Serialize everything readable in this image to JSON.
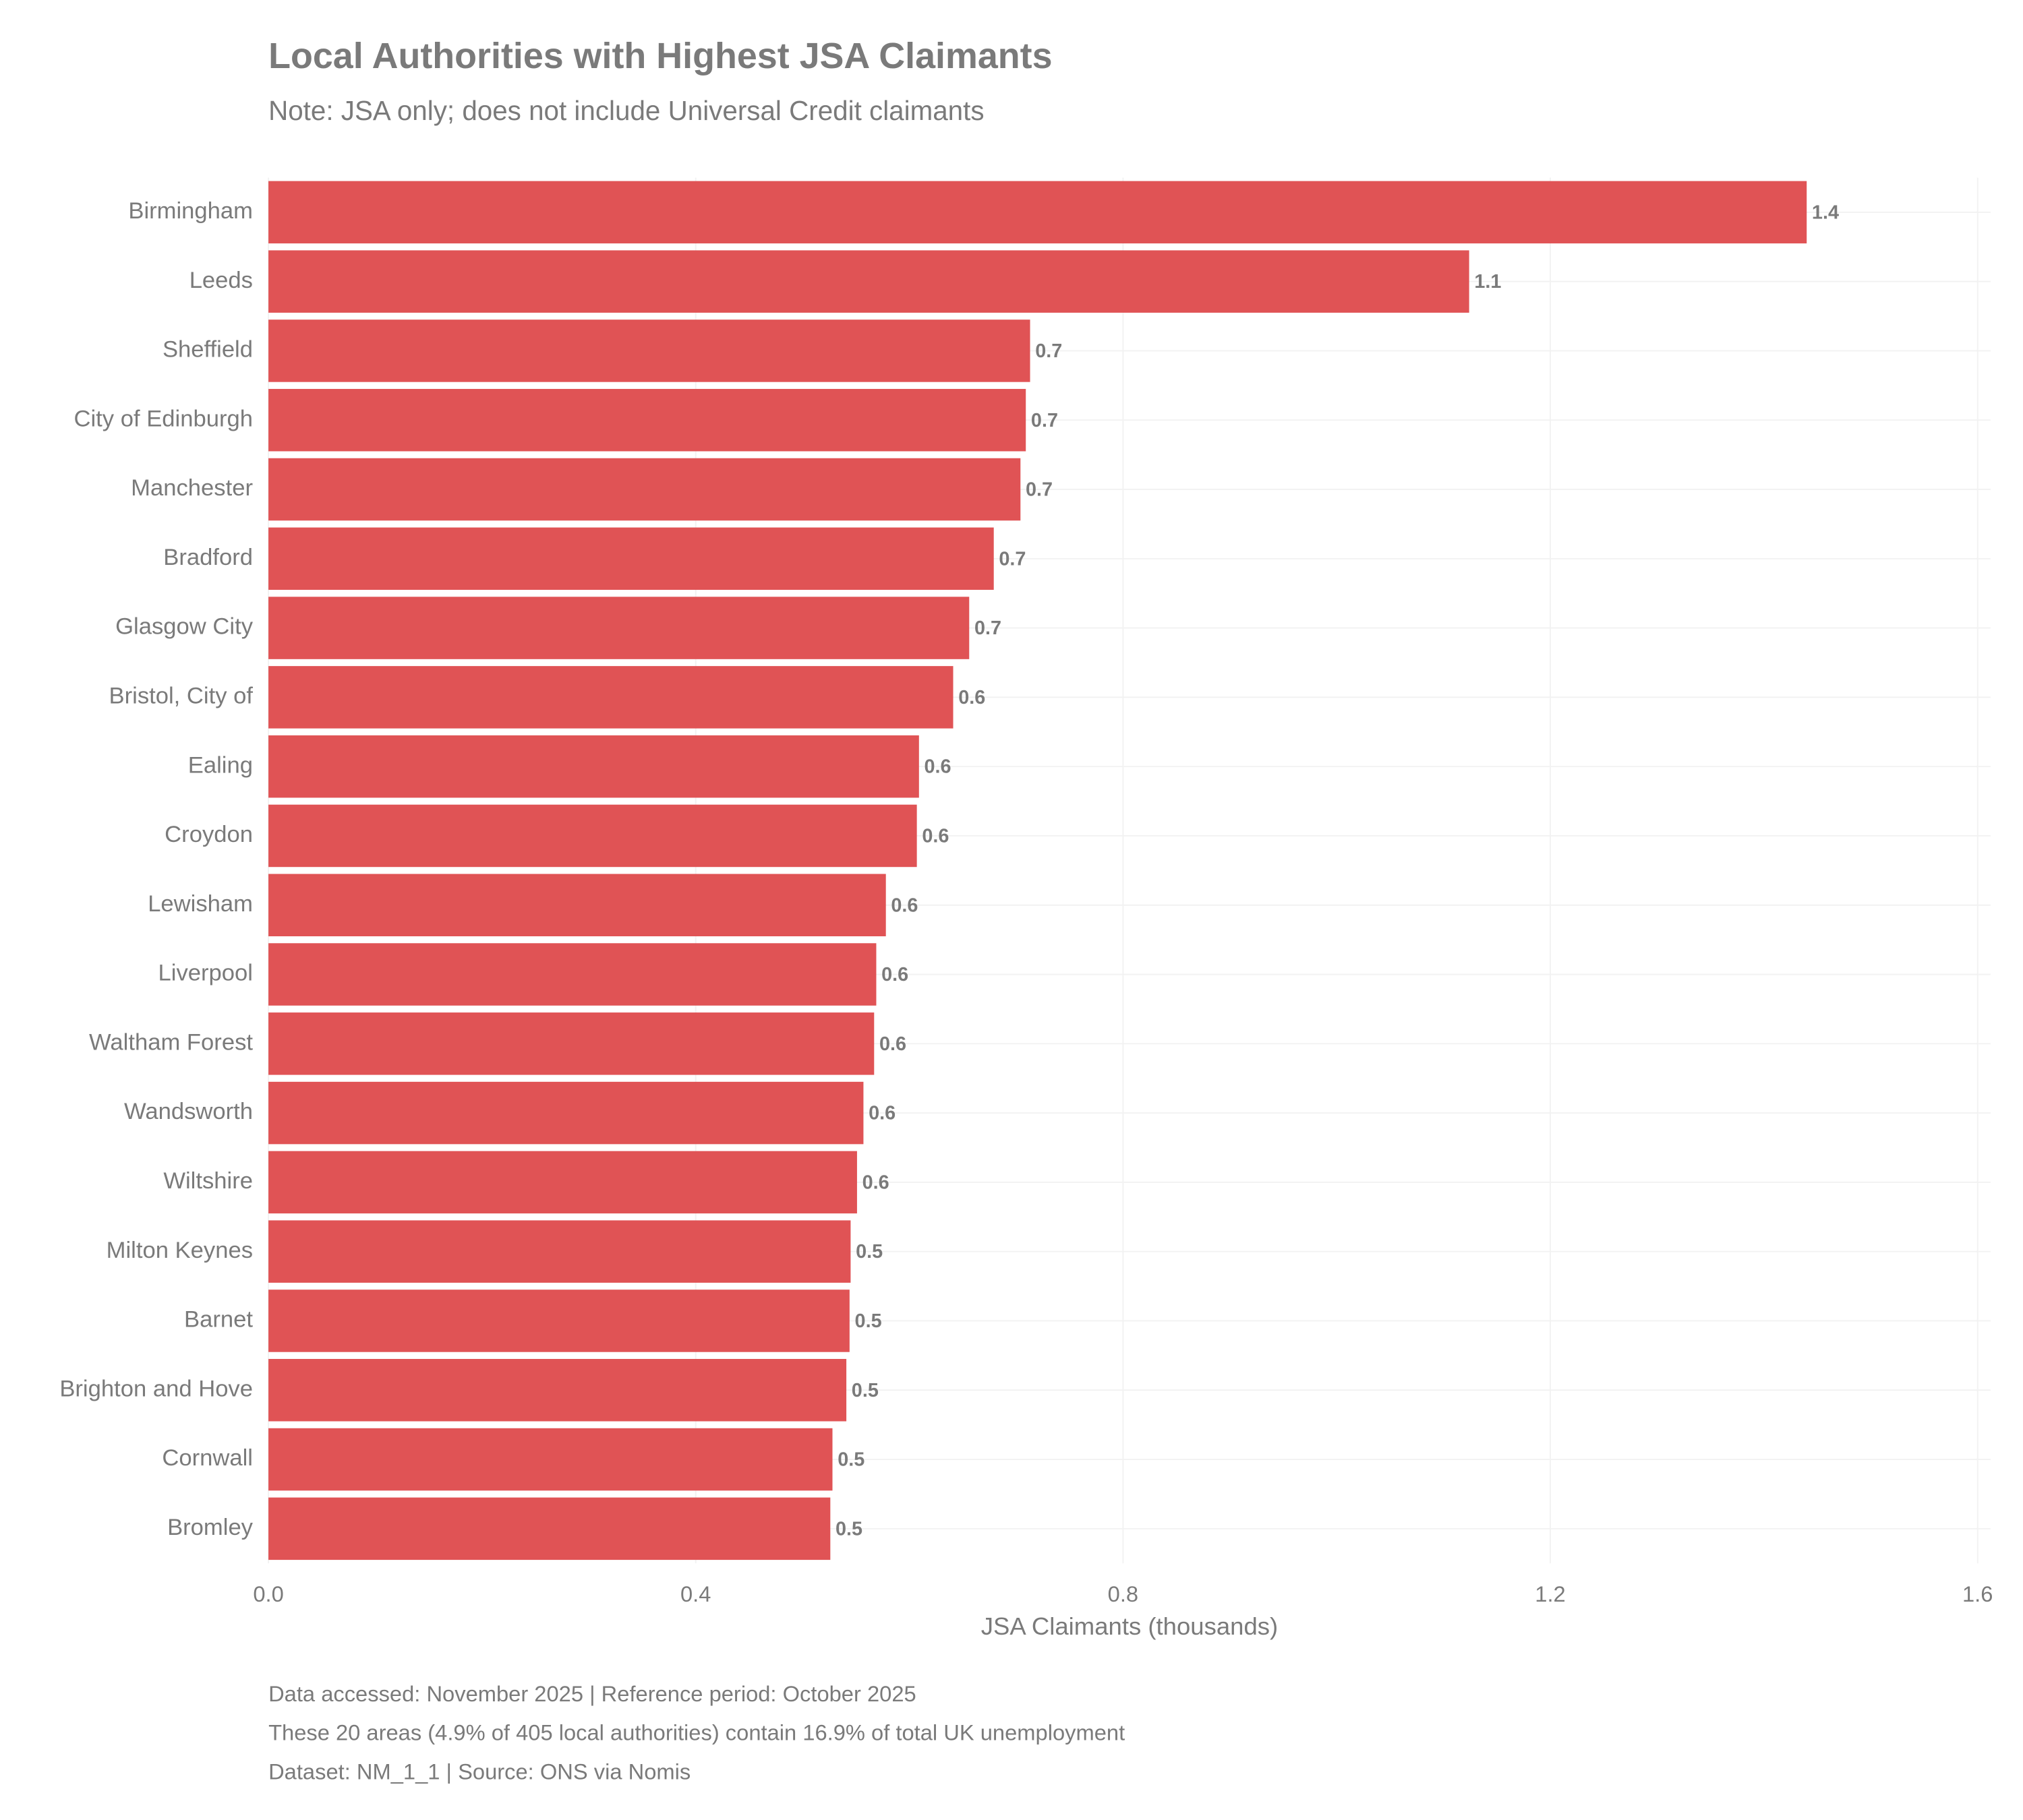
{
  "chart_data": {
    "type": "barh",
    "title": "Local Authorities with Highest JSA Claimants",
    "subtitle": "Note: JSA only; does not include Universal Credit claimants",
    "x_label": "JSA Claimants (thousands)",
    "categories": [
      "Birmingham",
      "Leeds",
      "Sheffield",
      "City of Edinburgh",
      "Manchester",
      "Bradford",
      "Glasgow City",
      "Bristol, City of",
      "Ealing",
      "Croydon",
      "Lewisham",
      "Liverpool",
      "Waltham Forest",
      "Wandsworth",
      "Wiltshire",
      "Milton Keynes",
      "Barnet",
      "Brighton and Hove",
      "Cornwall",
      "Bromley"
    ],
    "values": [
      1.44,
      1.124,
      0.713,
      0.709,
      0.704,
      0.679,
      0.656,
      0.641,
      0.609,
      0.607,
      0.578,
      0.569,
      0.567,
      0.557,
      0.551,
      0.545,
      0.544,
      0.541,
      0.528,
      0.526
    ],
    "value_labels": [
      "1.4",
      "1.1",
      "0.7",
      "0.7",
      "0.7",
      "0.7",
      "0.7",
      "0.6",
      "0.6",
      "0.6",
      "0.6",
      "0.6",
      "0.6",
      "0.6",
      "0.6",
      "0.5",
      "0.5",
      "0.5",
      "0.5",
      "0.5"
    ],
    "color": "#e05355",
    "xlim": [
      0,
      1.6
    ],
    "xticks": [
      {
        "value": 0,
        "label": "0.0"
      },
      0.4,
      0.8,
      1.2,
      1.6
    ],
    "grid": true,
    "notes": [
      "Data accessed: November 2025 | Reference period: October 2025",
      "These 20 areas (4.9% of 405 local authorities) contain 16.9% of total UK unemployment",
      "Dataset: NM_1_1 | Source: ONS via Nomis"
    ]
  }
}
